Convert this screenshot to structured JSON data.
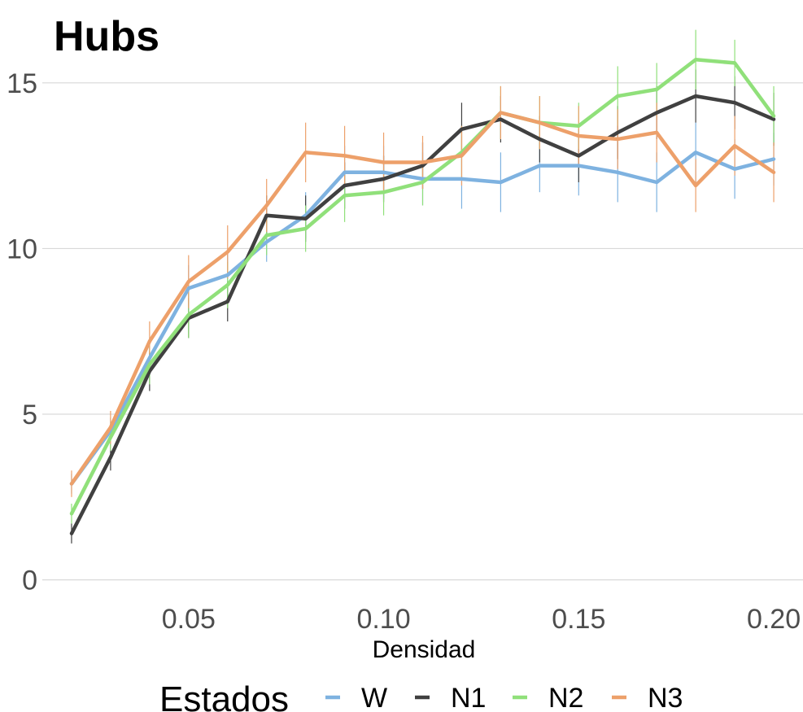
{
  "chart_data": {
    "type": "line",
    "title": "Hubs",
    "xlabel": "Densidad",
    "ylabel": "",
    "xlim": [
      0.0125,
      0.2075
    ],
    "ylim": [
      -0.5,
      17.5
    ],
    "xticks": [
      0.05,
      0.1,
      0.15,
      0.2
    ],
    "xtick_labels": [
      "0.05",
      "0.10",
      "0.15",
      "0.20"
    ],
    "yticks": [
      0,
      5,
      10,
      15
    ],
    "ytick_labels": [
      "0",
      "5",
      "10",
      "15"
    ],
    "grid": true,
    "legend_title": "Estados",
    "legend_position": "bottom",
    "x": [
      0.02,
      0.03,
      0.04,
      0.05,
      0.06,
      0.07,
      0.08,
      0.09,
      0.1,
      0.11,
      0.12,
      0.13,
      0.14,
      0.15,
      0.16,
      0.17,
      0.18,
      0.19,
      0.2
    ],
    "series": [
      {
        "name": "W",
        "color": "#7eb2e0",
        "values": [
          2.9,
          4.5,
          6.7,
          8.8,
          9.2,
          10.2,
          11.0,
          12.3,
          12.3,
          12.1,
          12.1,
          12.0,
          12.5,
          12.5,
          12.3,
          12.0,
          12.9,
          12.4,
          12.7
        ],
        "errors": [
          0.3,
          0.4,
          0.6,
          0.7,
          0.7,
          0.6,
          0.7,
          0.8,
          0.8,
          0.8,
          0.9,
          0.9,
          0.8,
          0.9,
          0.9,
          0.9,
          0.9,
          0.9,
          0.8
        ]
      },
      {
        "name": "N1",
        "color": "#404040",
        "values": [
          1.4,
          3.7,
          6.3,
          7.9,
          8.4,
          11.0,
          10.9,
          11.9,
          12.1,
          12.5,
          13.6,
          13.9,
          13.3,
          12.8,
          13.5,
          14.1,
          14.6,
          14.4,
          13.9
        ],
        "errors": [
          0.3,
          0.4,
          0.6,
          0.6,
          0.6,
          0.6,
          0.7,
          0.7,
          0.7,
          0.7,
          0.8,
          0.7,
          0.7,
          0.8,
          0.8,
          0.8,
          0.8,
          0.8,
          0.8
        ]
      },
      {
        "name": "N2",
        "color": "#90e07a",
        "values": [
          2.0,
          4.3,
          6.5,
          8.0,
          8.9,
          10.4,
          10.6,
          11.6,
          11.7,
          12.0,
          12.9,
          14.1,
          13.8,
          13.7,
          14.6,
          14.8,
          15.7,
          15.6,
          14.0
        ],
        "errors": [
          0.3,
          0.4,
          0.6,
          0.7,
          0.7,
          0.6,
          0.7,
          0.8,
          0.7,
          0.7,
          0.8,
          0.8,
          0.8,
          0.7,
          0.9,
          0.8,
          0.9,
          0.7,
          0.9
        ]
      },
      {
        "name": "N3",
        "color": "#eda06a",
        "values": [
          2.9,
          4.6,
          7.2,
          9.0,
          9.9,
          11.3,
          12.9,
          12.8,
          12.6,
          12.6,
          12.8,
          14.1,
          13.8,
          13.4,
          13.3,
          13.5,
          11.9,
          13.1,
          12.3
        ],
        "errors": [
          0.4,
          0.5,
          0.6,
          0.8,
          0.8,
          0.8,
          0.9,
          0.9,
          0.9,
          0.8,
          0.9,
          0.8,
          0.8,
          0.9,
          0.9,
          0.9,
          0.8,
          0.9,
          0.9
        ]
      }
    ]
  }
}
